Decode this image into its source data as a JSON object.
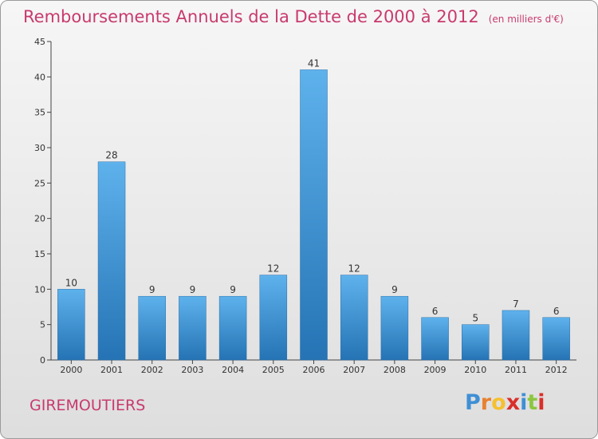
{
  "title": "Remboursements Annuels de la Dette de 2000 à 2012",
  "subtitle": "(en milliers d'€)",
  "town": "GIREMOUTIERS",
  "logo": {
    "letters": [
      "P",
      "r",
      "o",
      "x",
      "i",
      "t",
      "i"
    ],
    "colors": [
      "#3f8fd4",
      "#e8812f",
      "#f5c030",
      "#d9302b",
      "#3f8fd4",
      "#8cc63f",
      "#d9302b"
    ]
  },
  "colors": {
    "title": "#c83a6e",
    "bar_light": "#5eb2ec",
    "bar_dark": "#2573b4"
  },
  "chart_data": {
    "type": "bar",
    "categories": [
      "2000",
      "2001",
      "2002",
      "2003",
      "2004",
      "2005",
      "2006",
      "2007",
      "2008",
      "2009",
      "2010",
      "2011",
      "2012"
    ],
    "values": [
      10,
      28,
      9,
      9,
      9,
      12,
      41,
      12,
      9,
      6,
      5,
      7,
      6
    ],
    "ylim": [
      0,
      45
    ],
    "yticks": [
      0,
      5,
      10,
      15,
      20,
      25,
      30,
      35,
      40,
      45
    ],
    "grid": false,
    "legend": "none"
  }
}
